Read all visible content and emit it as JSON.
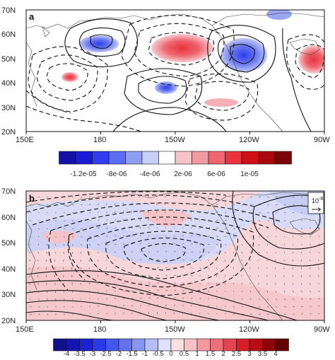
{
  "chart_data": [
    {
      "type": "heatmap",
      "panel": "a",
      "x_ticks": [
        "150E",
        "180",
        "150W",
        "120W",
        "90W"
      ],
      "y_ticks": [
        "20N",
        "30N",
        "40N",
        "50N",
        "60N",
        "70N"
      ],
      "xlim": [
        150,
        270
      ],
      "ylim": [
        20,
        70
      ],
      "colorbar": {
        "labels": [
          "-1.2e-05",
          "-8e-06",
          "-4e-06",
          "2e-06",
          "6e-06",
          "1e-05"
        ],
        "colors": [
          "#1212a8",
          "#1a1ad8",
          "#2f3cf0",
          "#5a6cf0",
          "#8f9df2",
          "#c7cef7",
          "#ffffff",
          "#f6c4c8",
          "#f29aa2",
          "#ee6670",
          "#e8323c",
          "#d10f18",
          "#a8080e",
          "#7a0408"
        ]
      },
      "shaded_anomalies": [
        {
          "lon": 168,
          "lat": 49,
          "value": -6e-06
        },
        {
          "lon": 195,
          "lat": 53,
          "value": 1e-05
        },
        {
          "lon": 224,
          "lat": 48,
          "value": -1e-05
        },
        {
          "lon": 262,
          "lat": 48,
          "value": 6e-06
        },
        {
          "lon": 159,
          "lat": 41,
          "value": 4e-06
        },
        {
          "lon": 201,
          "lat": 37,
          "value": -6e-06
        },
        {
          "lon": 237,
          "lat": 66,
          "value": -2e-06
        },
        {
          "lon": 218,
          "lat": 28,
          "value": 2e-06
        }
      ]
    },
    {
      "type": "heatmap",
      "panel": "b",
      "x_ticks": [
        "150E",
        "180",
        "150W",
        "120W",
        "90W"
      ],
      "y_ticks": [
        "20N",
        "30N",
        "40N",
        "50N",
        "60N",
        "70N"
      ],
      "xlim": [
        150,
        270
      ],
      "ylim": [
        20,
        70
      ],
      "vector_reference": "10",
      "vector_reference_exponent": "-6",
      "colorbar": {
        "labels": [
          "-4",
          "-3.5",
          "-3",
          "-2.5",
          "-2",
          "-1.5",
          "-1",
          "-0.5",
          "0",
          "0.5",
          "1",
          "1.5",
          "2",
          "2.5",
          "3",
          "3.5",
          "4"
        ],
        "colors": [
          "#11118c",
          "#1515b4",
          "#1c22d2",
          "#2a3ae4",
          "#4456ec",
          "#6272f0",
          "#8895f2",
          "#b4bdf6",
          "#dde1fa",
          "#fbe0e2",
          "#f7c2c6",
          "#f39aa1",
          "#ee707a",
          "#e84450",
          "#d81f28",
          "#b80d14",
          "#8c060b",
          "#640306"
        ]
      }
    }
  ]
}
